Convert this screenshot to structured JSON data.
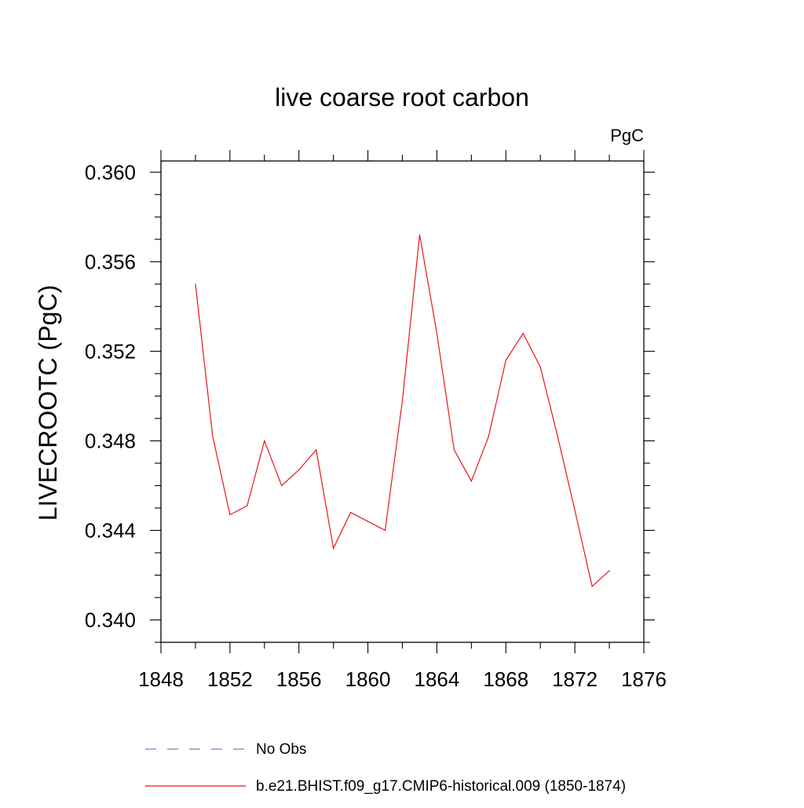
{
  "chart_data": {
    "type": "line",
    "title": "live coarse root carbon",
    "units": "PgC",
    "ylabel": "LIVECROOTC  (PgC)",
    "xlabel": "",
    "xlim": [
      1848,
      1876
    ],
    "ylim": [
      0.339,
      0.3605
    ],
    "x_ticks": [
      1848,
      1852,
      1856,
      1860,
      1864,
      1868,
      1872,
      1876
    ],
    "x_minor_ticks": [
      1850,
      1854,
      1858,
      1862,
      1866,
      1870,
      1874
    ],
    "y_ticks": [
      0.34,
      0.344,
      0.348,
      0.352,
      0.356,
      0.36
    ],
    "y_tick_labels": [
      "0.340",
      "0.344",
      "0.348",
      "0.352",
      "0.356",
      "0.360"
    ],
    "y_minor_step": 0.001,
    "grid": false,
    "series": [
      {
        "name": "b.e21.BHIST.f09_g17.CMIP6-historical.009 (1850-1874)",
        "color": "#e8161b",
        "style": "solid",
        "x": [
          1850,
          1851,
          1852,
          1853,
          1854,
          1855,
          1856,
          1857,
          1858,
          1859,
          1860,
          1861,
          1862,
          1863,
          1864,
          1865,
          1866,
          1867,
          1868,
          1869,
          1870,
          1871,
          1872,
          1873,
          1874
        ],
        "y": [
          0.355,
          0.3482,
          0.3447,
          0.3451,
          0.348,
          0.346,
          0.3467,
          0.3476,
          0.3432,
          0.3448,
          0.3444,
          0.344,
          0.3498,
          0.3572,
          0.3528,
          0.3476,
          0.3462,
          0.3482,
          0.3516,
          0.3528,
          0.3513,
          0.3482,
          0.3449,
          0.3415,
          0.3422
        ]
      }
    ],
    "legend": {
      "placement": "bottom",
      "entries": [
        {
          "label": "No Obs",
          "color": "#7b7bc4",
          "style": "dashed"
        },
        {
          "label": "b.e21.BHIST.f09_g17.CMIP6-historical.009 (1850-1874)",
          "color": "#e8161b",
          "style": "solid"
        }
      ]
    }
  }
}
